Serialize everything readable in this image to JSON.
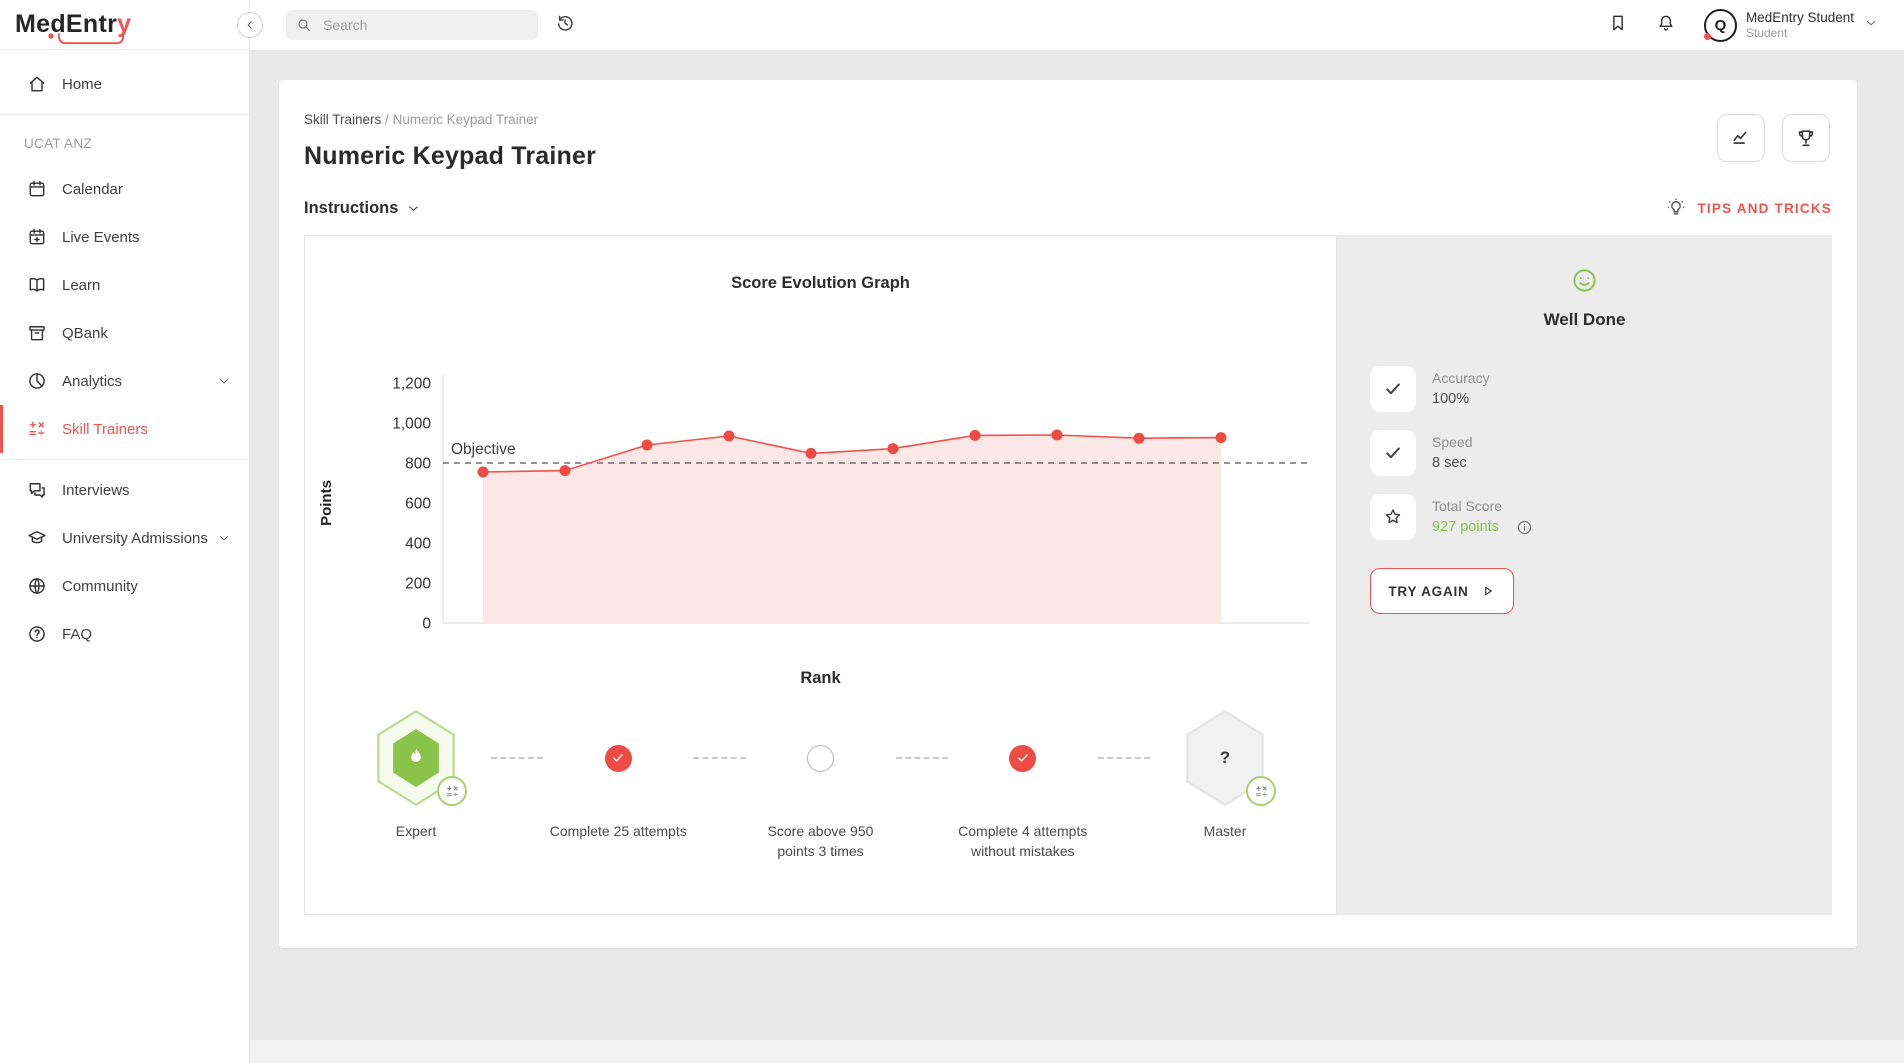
{
  "brand": {
    "name_dark": "MedEntr",
    "name_accent": "y"
  },
  "topbar": {
    "search_placeholder": "Search",
    "user_name": "MedEntry Student",
    "user_role": "Student"
  },
  "sidebar": {
    "items": [
      {
        "label": "Home",
        "icon": "home"
      },
      {
        "type": "divider"
      },
      {
        "type": "section",
        "label": "UCAT ANZ"
      },
      {
        "label": "Calendar",
        "icon": "calendar"
      },
      {
        "label": "Live Events",
        "icon": "calendar-plus"
      },
      {
        "label": "Learn",
        "icon": "book"
      },
      {
        "label": "QBank",
        "icon": "qbank"
      },
      {
        "label": "Analytics",
        "icon": "analytics",
        "chevron": true
      },
      {
        "label": "Skill Trainers",
        "icon": "keypad",
        "active": true
      },
      {
        "type": "divider"
      },
      {
        "label": "Interviews",
        "icon": "interviews"
      },
      {
        "label": "University Admissions",
        "icon": "university",
        "chevron": true
      },
      {
        "label": "Community",
        "icon": "community"
      },
      {
        "label": "FAQ",
        "icon": "faq"
      }
    ]
  },
  "page": {
    "breadcrumb_parent": "Skill Trainers",
    "breadcrumb_sep": "/",
    "breadcrumb_current": "Numeric Keypad Trainer",
    "title": "Numeric Keypad Trainer",
    "instructions": "Instructions",
    "tips": "TIPS AND TRICKS"
  },
  "chart_data": {
    "type": "line",
    "title": "Score Evolution Graph",
    "ylabel": "Points",
    "x": [
      1,
      2,
      3,
      4,
      5,
      6,
      7,
      8,
      9,
      10
    ],
    "series": [
      {
        "name": "Score",
        "values": [
          755,
          762,
          890,
          935,
          848,
          872,
          938,
          940,
          924,
          927
        ]
      }
    ],
    "objective": {
      "label": "Objective",
      "value": 800
    },
    "ylim": [
      0,
      1200
    ],
    "yticks": [
      0,
      200,
      400,
      600,
      800,
      1000,
      1200
    ],
    "grid": false,
    "legend": false,
    "area": true,
    "line_color": "#f0524d",
    "point_color": "#ef4b45",
    "area_color": "#fbe7e6",
    "objective_color": "#555555"
  },
  "rank": {
    "title": "Rank",
    "steps": [
      {
        "kind": "badge",
        "variant": "earned",
        "icon": "flame",
        "badge_icon": "keypad",
        "label": "Expert"
      },
      {
        "kind": "check",
        "label": "Complete 25 attempts"
      },
      {
        "kind": "pending",
        "label": "Score above 950 points 3 times"
      },
      {
        "kind": "check",
        "label": "Complete 4 attempts without mistakes"
      },
      {
        "kind": "badge",
        "variant": "locked",
        "icon": "question",
        "badge_icon": "keypad",
        "label": "Master"
      }
    ]
  },
  "results": {
    "heading": "Well Done",
    "stats": [
      {
        "icon": "check",
        "label": "Accuracy",
        "value": "100%"
      },
      {
        "icon": "check",
        "label": "Speed",
        "value": "8 sec"
      },
      {
        "icon": "star",
        "label": "Total Score",
        "value": "927 points",
        "highlight": true,
        "info": true
      }
    ],
    "try_again": "TRY AGAIN"
  },
  "colors": {
    "accent": "#f0524d",
    "green": "#8bc34a",
    "panel_gray": "#ececec",
    "background_gray": "#e9e9e9"
  }
}
